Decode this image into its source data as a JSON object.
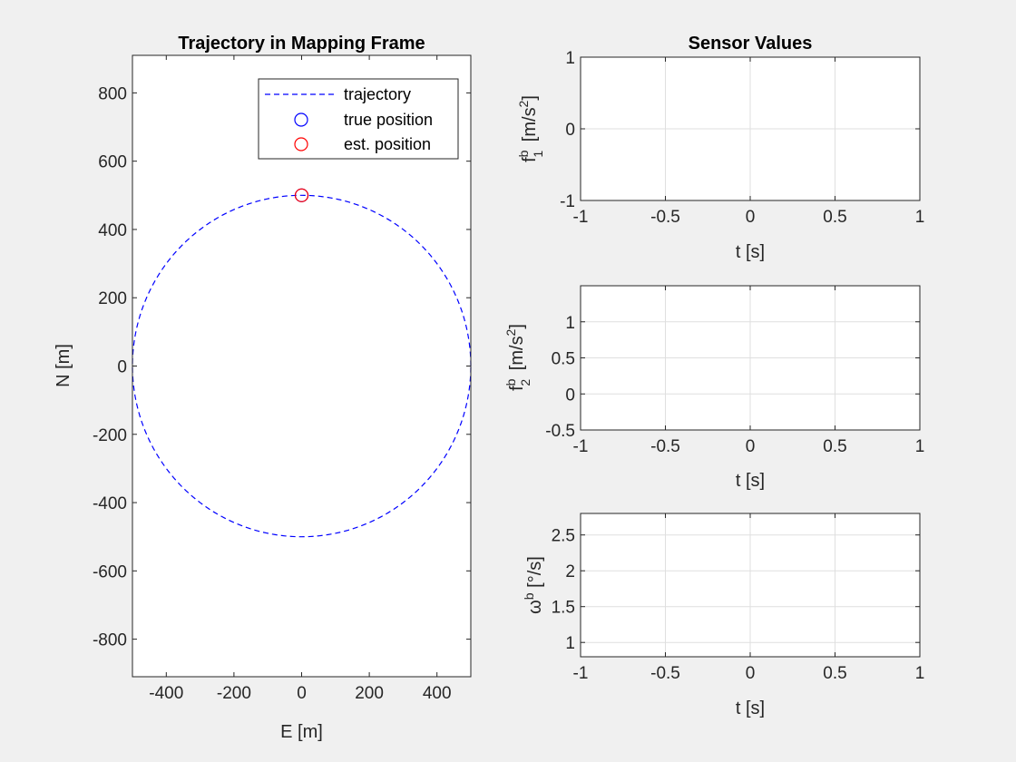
{
  "chart_data": [
    {
      "type": "line",
      "title": "Trajectory in Mapping Frame",
      "xlabel": "E [m]",
      "ylabel": "N [m]",
      "xlim": [
        -500,
        500
      ],
      "ylim": [
        -910,
        910
      ],
      "xticks": [
        -400,
        -200,
        0,
        200,
        400
      ],
      "yticks": [
        -800,
        -600,
        -400,
        -200,
        0,
        200,
        400,
        600,
        800
      ],
      "grid": false,
      "legend_position": "top-right",
      "series": [
        {
          "name": "trajectory",
          "kind": "circle",
          "center": [
            0,
            0
          ],
          "radius": 500,
          "style": "dashed",
          "color": "#0000ff"
        },
        {
          "name": "true position",
          "kind": "marker",
          "x": [
            0
          ],
          "y": [
            500
          ],
          "color": "#0000ff"
        },
        {
          "name": "est. position",
          "kind": "marker",
          "x": [
            0
          ],
          "y": [
            500
          ],
          "color": "#ff0000"
        }
      ]
    },
    {
      "type": "line",
      "title": "Sensor Values",
      "xlabel": "t [s]",
      "ylabel": "f_1^b [m/s^2]",
      "xlim": [
        -1,
        1
      ],
      "ylim": [
        -1,
        1
      ],
      "xticks": [
        -1,
        -0.5,
        0,
        0.5,
        1
      ],
      "yticks": [
        -1,
        0,
        1
      ],
      "grid": true,
      "series": []
    },
    {
      "type": "line",
      "title": "",
      "xlabel": "t [s]",
      "ylabel": "f_2^b [m/s^2]",
      "xlim": [
        -1,
        1
      ],
      "ylim": [
        -0.5,
        1.5
      ],
      "xticks": [
        -1,
        -0.5,
        0,
        0.5,
        1
      ],
      "yticks": [
        -0.5,
        0,
        0.5,
        1
      ],
      "grid": true,
      "series": []
    },
    {
      "type": "line",
      "title": "",
      "xlabel": "t [s]",
      "ylabel": "ω^b [°/s]",
      "xlim": [
        -1,
        1
      ],
      "ylim": [
        0.8,
        2.8
      ],
      "xticks": [
        -1,
        -0.5,
        0,
        0.5,
        1
      ],
      "yticks": [
        1,
        1.5,
        2,
        2.5
      ],
      "grid": true,
      "series": []
    }
  ]
}
